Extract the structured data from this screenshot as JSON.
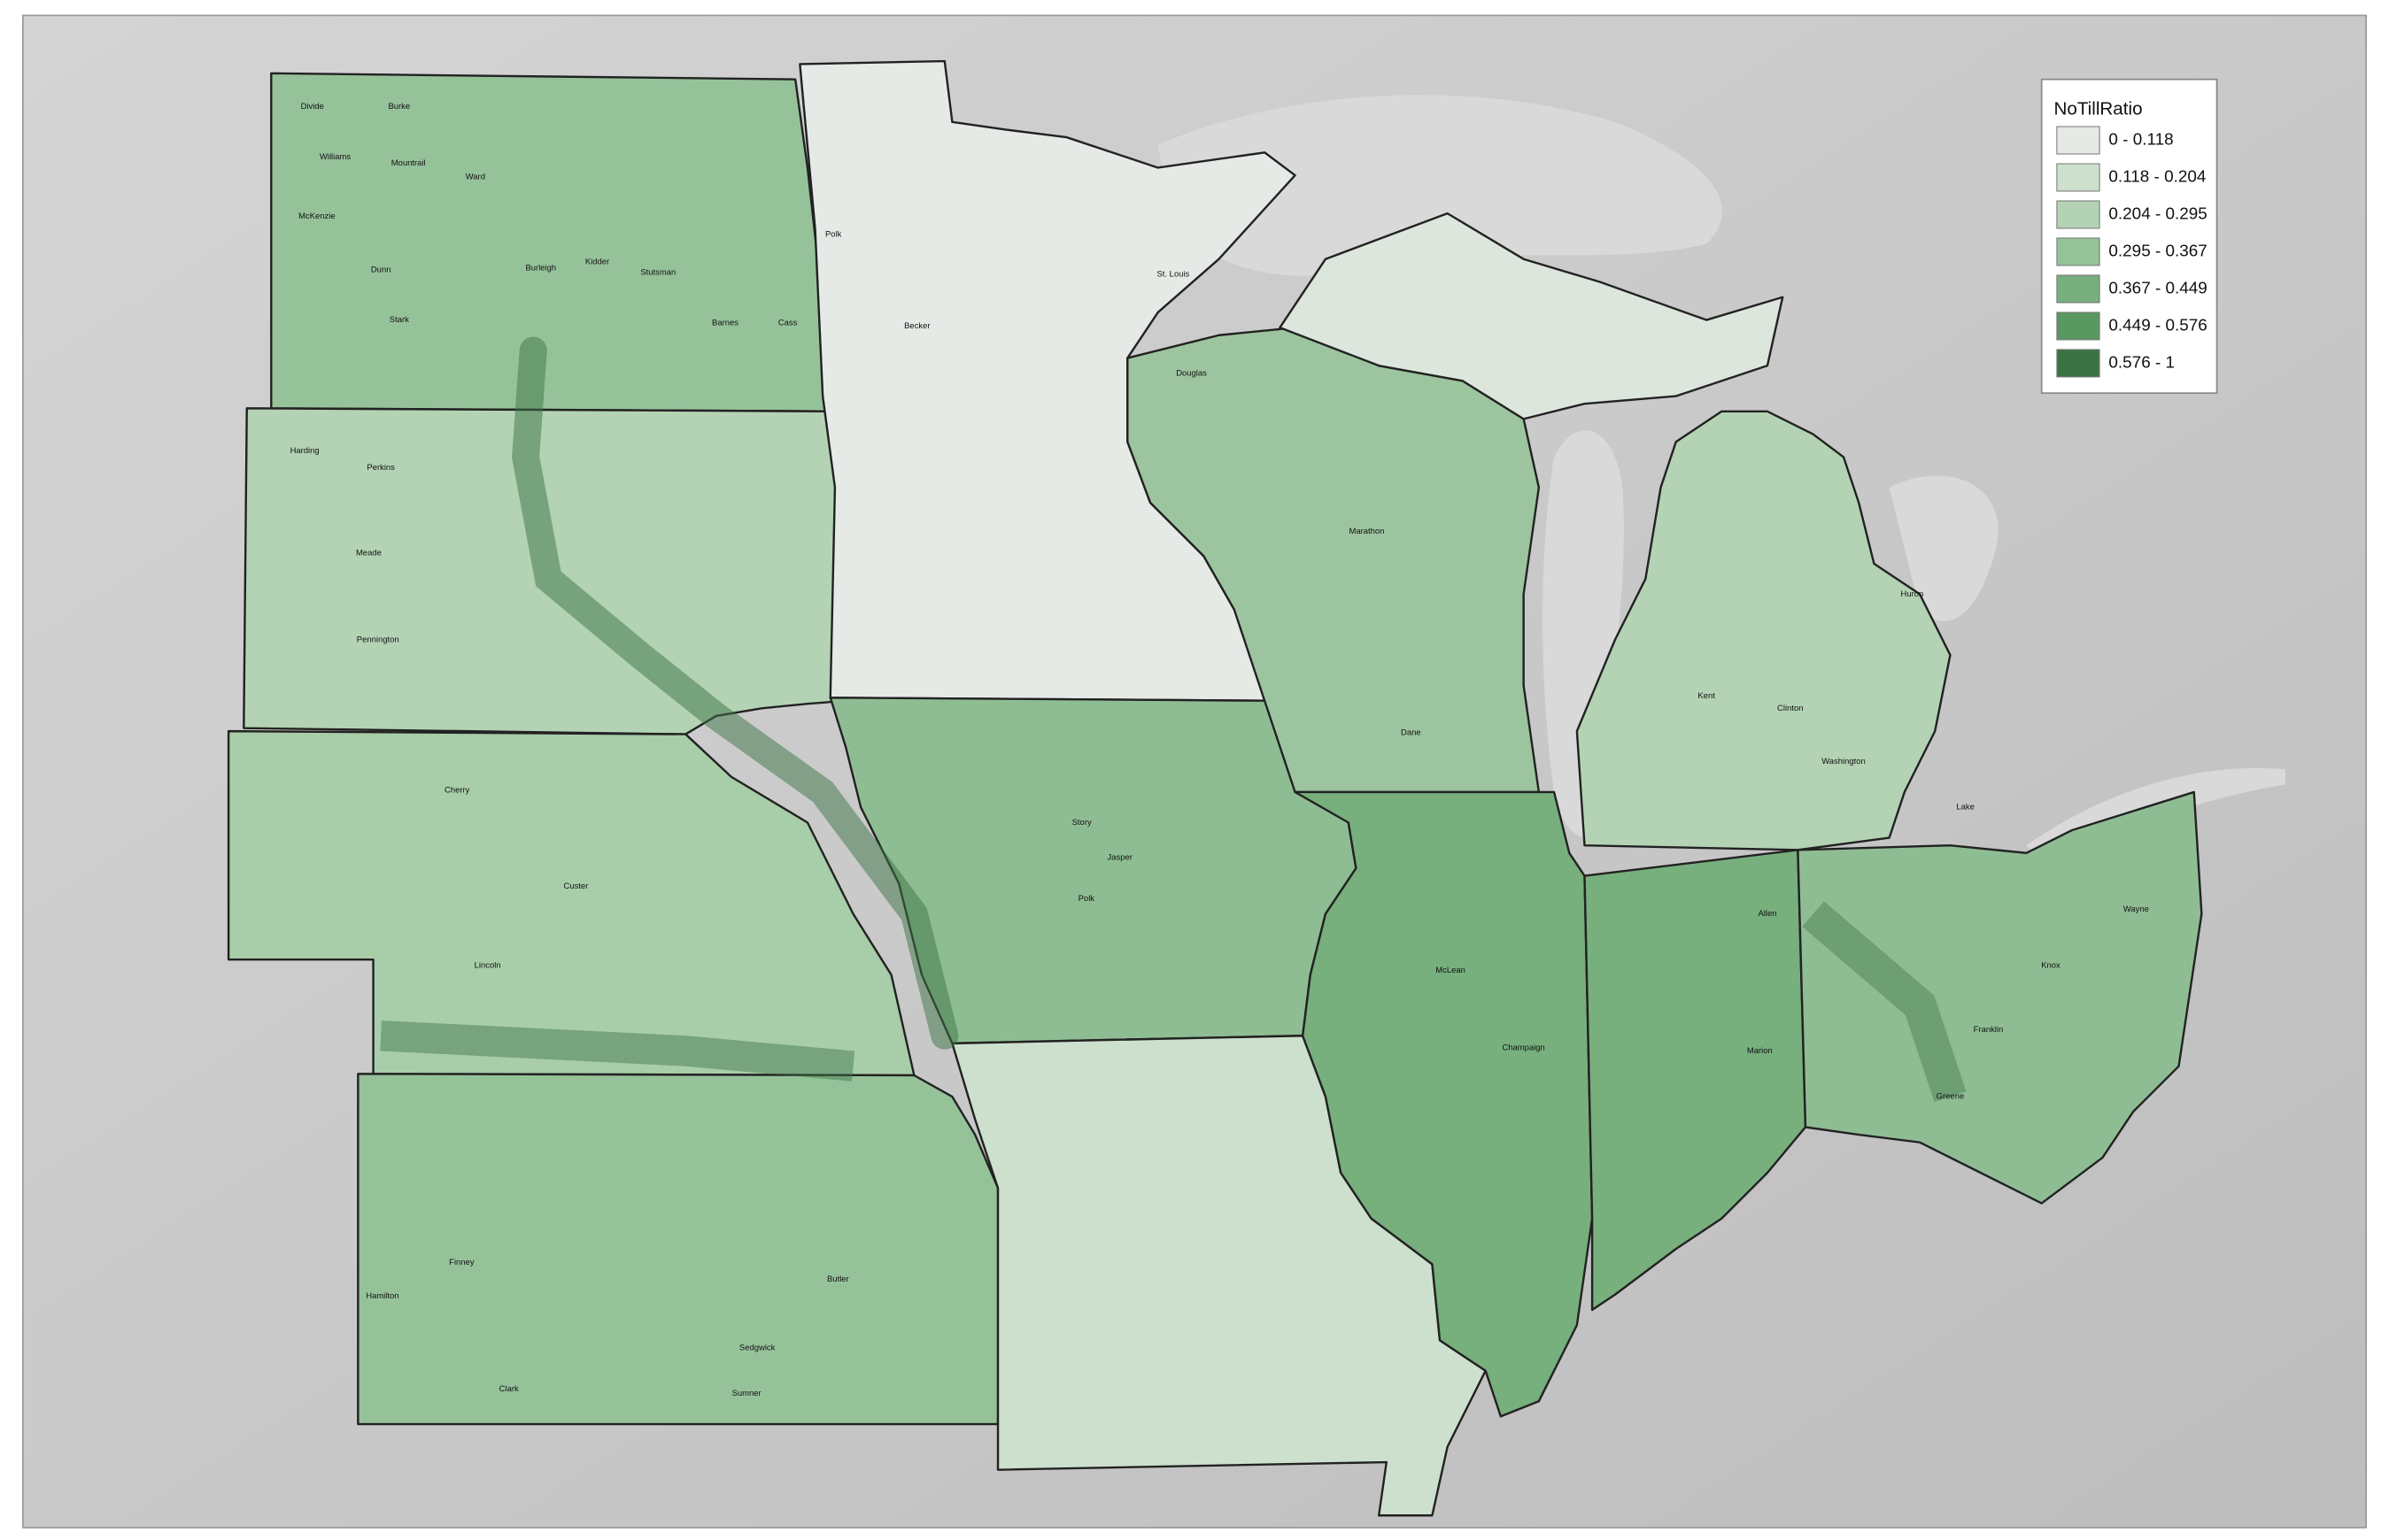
{
  "legend": {
    "title": "NoTillRatio",
    "classes": [
      {
        "label": "0 - 0.118",
        "color": "#e6eae6"
      },
      {
        "label": "0.118 - 0.204",
        "color": "#cde0cd"
      },
      {
        "label": "0.204 - 0.295",
        "color": "#b3d3b4"
      },
      {
        "label": "0.295 - 0.367",
        "color": "#96c29a"
      },
      {
        "label": "0.367 - 0.449",
        "color": "#77af7d"
      },
      {
        "label": "0.449 - 0.576",
        "color": "#5a9862"
      },
      {
        "label": "0.576 - 1",
        "color": "#3c7344"
      }
    ]
  },
  "counties": [
    "Divide",
    "Burke",
    "Williams",
    "Mountrail",
    "Ward",
    "McKenzie",
    "Dunn",
    "Stark",
    "Burleigh",
    "Kidder",
    "Stutsman",
    "Cass",
    "Barnes",
    "Harding",
    "Perkins",
    "Meade",
    "Pennington",
    "Cherry",
    "Custer",
    "Lincoln",
    "Hamilton",
    "Finney",
    "Sedgwick",
    "Butler",
    "Sumner",
    "Clark",
    "Polk",
    "Becker",
    "St. Louis",
    "Douglas",
    "Marathon",
    "Dane",
    "Story",
    "Polk",
    "Champaign",
    "McLean",
    "Jasper",
    "Allen",
    "Wayne",
    "Knox",
    "Washington",
    "Kent",
    "Huron",
    "Franklin",
    "Greene",
    "Marion",
    "Clinton",
    "Lake"
  ]
}
